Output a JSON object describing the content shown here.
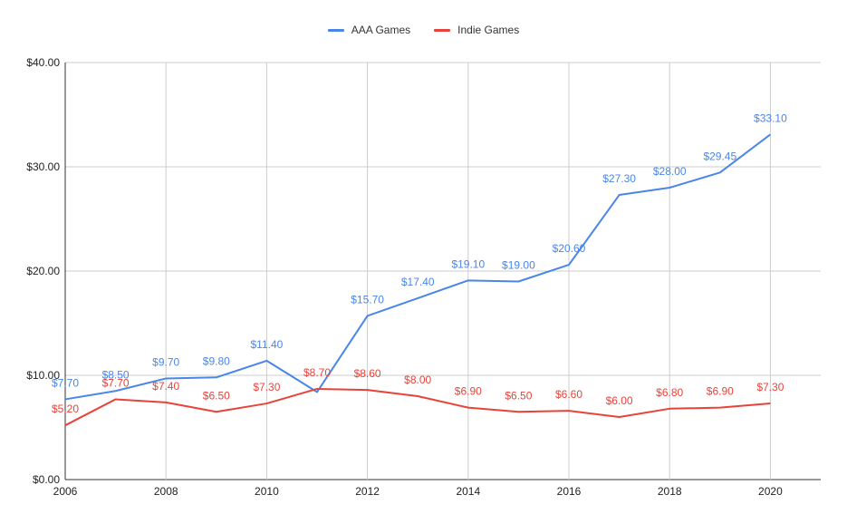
{
  "chart_data": {
    "type": "line",
    "title": "",
    "xlabel": "",
    "ylabel": "",
    "x": [
      2006,
      2007,
      2008,
      2009,
      2010,
      2011,
      2012,
      2013,
      2014,
      2015,
      2016,
      2017,
      2018,
      2019,
      2020
    ],
    "xticks": [
      "2006",
      "2008",
      "2010",
      "2012",
      "2014",
      "2016",
      "2018",
      "2020"
    ],
    "xlim": [
      2006,
      2021
    ],
    "ylim": [
      0,
      40
    ],
    "yticks": [
      "$0.00",
      "$10.00",
      "$20.00",
      "$30.00",
      "$40.00"
    ],
    "grid": true,
    "legend_position": "top-center",
    "series": [
      {
        "name": "AAA Games",
        "color": "#4a86e8",
        "values": [
          7.7,
          8.5,
          9.7,
          9.8,
          11.4,
          8.4,
          15.7,
          17.4,
          19.1,
          19.0,
          20.6,
          27.3,
          28.0,
          29.45,
          33.1
        ],
        "labels": [
          "$7.70",
          "$8.50",
          "$9.70",
          "$9.80",
          "$11.40",
          "",
          "$15.70",
          "$17.40",
          "$19.10",
          "$19.00",
          "$20.60",
          "$27.30",
          "$28.00",
          "$29.45",
          "$33.10"
        ]
      },
      {
        "name": "Indie Games",
        "color": "#e8433a",
        "values": [
          5.2,
          7.7,
          7.4,
          6.5,
          7.3,
          8.7,
          8.6,
          8.0,
          6.9,
          6.5,
          6.6,
          6.0,
          6.8,
          6.9,
          7.3
        ],
        "labels": [
          "$5.20",
          "$7.70",
          "$7.40",
          "$6.50",
          "$7.30",
          "$8.70",
          "$8.60",
          "$8.00",
          "$6.90",
          "$6.50",
          "$6.60",
          "$6.00",
          "$6.80",
          "$6.90",
          "$7.30"
        ]
      }
    ]
  }
}
